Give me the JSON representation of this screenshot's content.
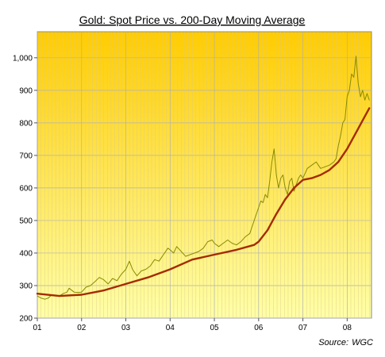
{
  "chart_data": {
    "type": "line",
    "title": "Gold: Spot Price vs. 200-Day Moving Average",
    "source_label": "Source:",
    "source_name": "WGC",
    "xlabel": "",
    "ylabel": "",
    "xlim": [
      2001,
      2008.55
    ],
    "ylim": [
      200,
      1080
    ],
    "x_ticks": [
      2001,
      2002,
      2003,
      2004,
      2005,
      2006,
      2007,
      2008
    ],
    "x_tick_labels": [
      "01",
      "02",
      "03",
      "04",
      "05",
      "06",
      "07",
      "08"
    ],
    "y_ticks": [
      200,
      300,
      400,
      500,
      600,
      700,
      800,
      900,
      1000
    ],
    "y_tick_labels": [
      "200",
      "300",
      "400",
      "500",
      "600",
      "700",
      "800",
      "900",
      "1,000"
    ],
    "grid": true,
    "background_gradient": [
      "#ffcc00",
      "#ffffa8"
    ],
    "series": [
      {
        "name": "",
        "color": "#8a8a00",
        "x": [
          2001.0,
          2001.08,
          2001.17,
          2001.25,
          2001.33,
          2001.42,
          2001.5,
          2001.58,
          2001.67,
          2001.72,
          2001.83,
          2001.92,
          2002.0,
          2002.1,
          2002.2,
          2002.3,
          2002.4,
          2002.5,
          2002.6,
          2002.7,
          2002.8,
          2002.9,
          2003.0,
          2003.08,
          2003.15,
          2003.25,
          2003.35,
          2003.45,
          2003.55,
          2003.65,
          2003.75,
          2003.85,
          2003.95,
          2004.0,
          2004.08,
          2004.15,
          2004.25,
          2004.35,
          2004.45,
          2004.55,
          2004.65,
          2004.75,
          2004.85,
          2004.95,
          2005.0,
          2005.1,
          2005.2,
          2005.3,
          2005.4,
          2005.5,
          2005.6,
          2005.7,
          2005.8,
          2005.9,
          2006.0,
          2006.05,
          2006.1,
          2006.15,
          2006.2,
          2006.25,
          2006.3,
          2006.35,
          2006.4,
          2006.45,
          2006.5,
          2006.55,
          2006.6,
          2006.65,
          2006.7,
          2006.75,
          2006.8,
          2006.85,
          2006.9,
          2006.95,
          2007.0,
          2007.1,
          2007.2,
          2007.3,
          2007.4,
          2007.5,
          2007.6,
          2007.7,
          2007.75,
          2007.8,
          2007.85,
          2007.9,
          2007.95,
          2008.0,
          2008.05,
          2008.1,
          2008.15,
          2008.2,
          2008.25,
          2008.3,
          2008.35,
          2008.4,
          2008.45,
          2008.5
        ],
        "y": [
          268,
          262,
          258,
          262,
          272,
          270,
          268,
          275,
          280,
          292,
          280,
          279,
          280,
          295,
          300,
          312,
          325,
          318,
          305,
          322,
          315,
          335,
          350,
          375,
          350,
          330,
          345,
          350,
          360,
          380,
          375,
          395,
          415,
          410,
          400,
          420,
          405,
          390,
          395,
          400,
          405,
          415,
          435,
          440,
          430,
          420,
          430,
          440,
          430,
          425,
          435,
          450,
          460,
          500,
          540,
          560,
          555,
          580,
          570,
          620,
          680,
          720,
          640,
          600,
          630,
          640,
          600,
          580,
          620,
          630,
          590,
          610,
          630,
          640,
          630,
          660,
          670,
          680,
          660,
          665,
          670,
          680,
          690,
          730,
          760,
          800,
          810,
          880,
          900,
          950,
          940,
          1005,
          920,
          880,
          900,
          870,
          890,
          870
        ]
      },
      {
        "name": "",
        "color": "#a52a00",
        "x": [
          2001.0,
          2001.5,
          2002.0,
          2002.5,
          2003.0,
          2003.5,
          2004.0,
          2004.5,
          2005.0,
          2005.5,
          2005.9,
          2006.0,
          2006.2,
          2006.4,
          2006.6,
          2006.8,
          2007.0,
          2007.2,
          2007.4,
          2007.6,
          2007.8,
          2008.0,
          2008.2,
          2008.4,
          2008.5
        ],
        "y": [
          275,
          268,
          272,
          285,
          305,
          325,
          350,
          380,
          395,
          410,
          425,
          435,
          470,
          520,
          565,
          600,
          625,
          630,
          640,
          655,
          680,
          720,
          770,
          820,
          845
        ]
      }
    ]
  }
}
